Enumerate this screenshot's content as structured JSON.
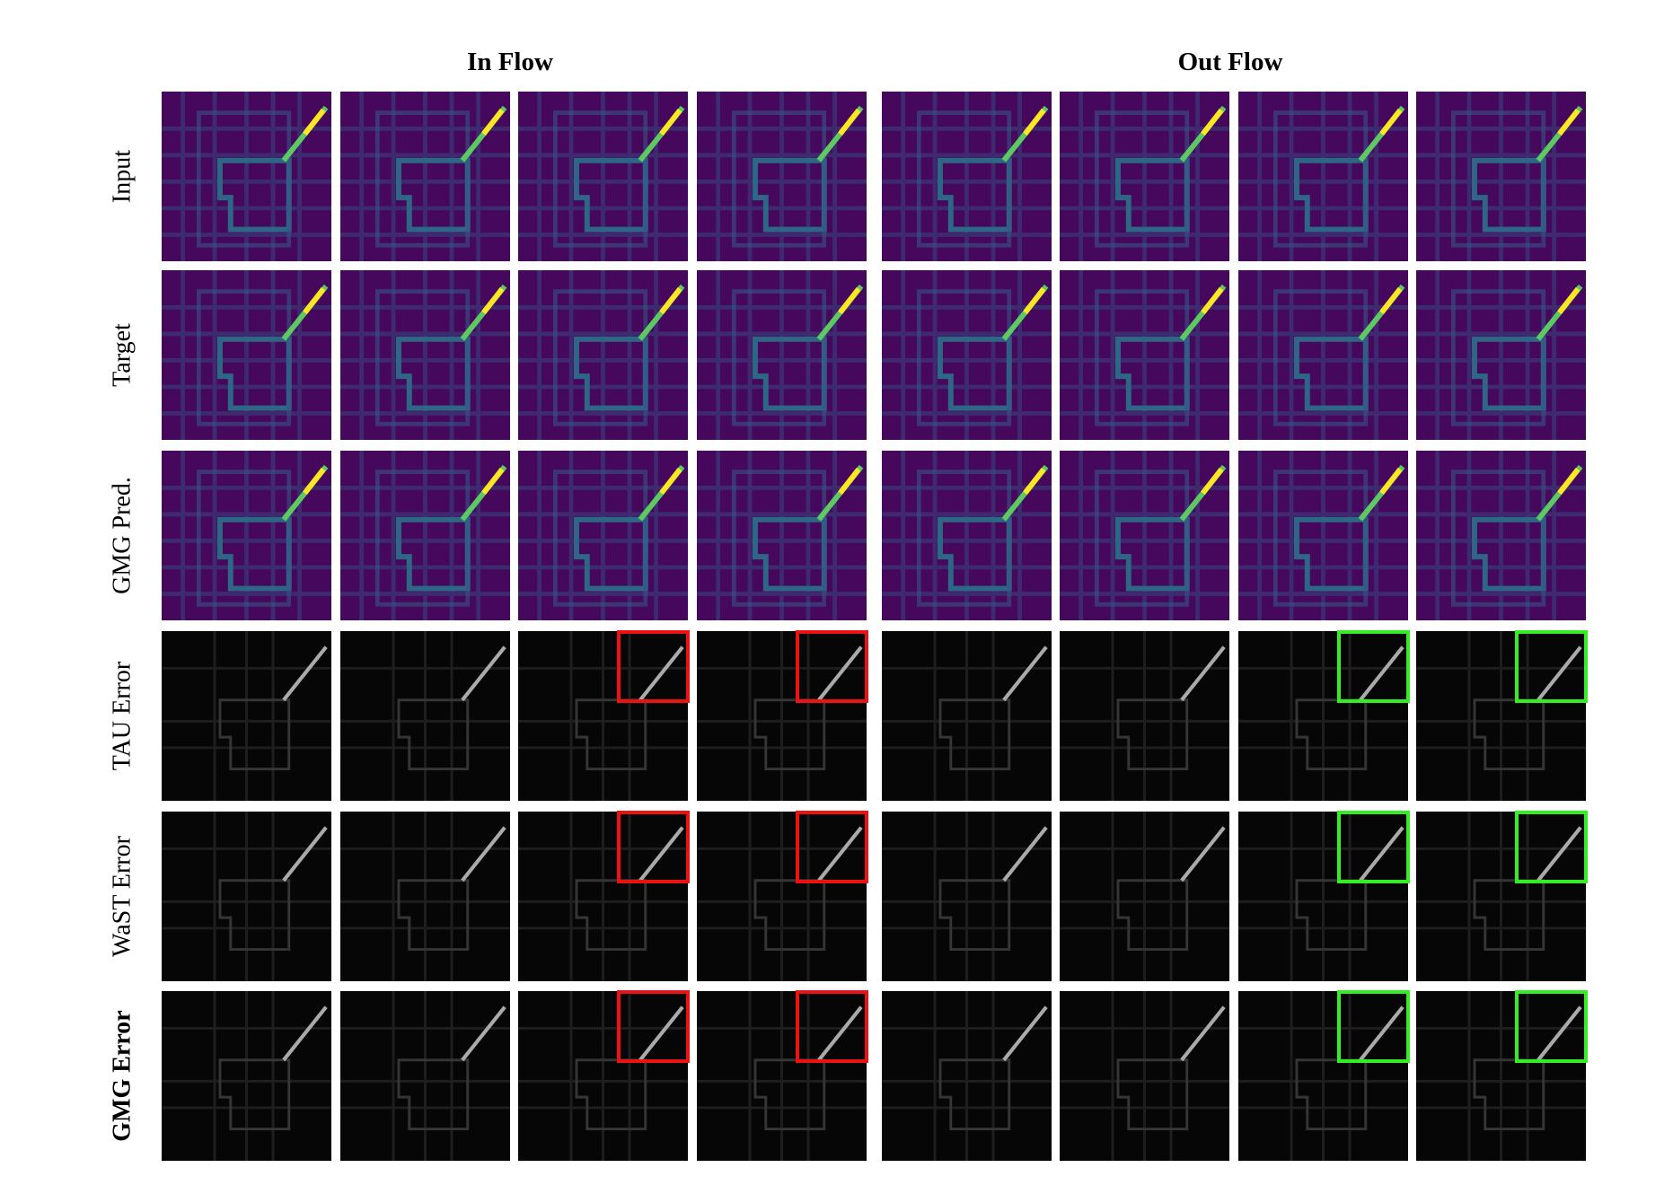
{
  "headers": [
    "In Flow",
    "Out Flow"
  ],
  "row_labels": [
    "Input",
    "Target",
    "GMG Pred.",
    "TAU Error",
    "WaST Error",
    "GMG Error"
  ]
}
